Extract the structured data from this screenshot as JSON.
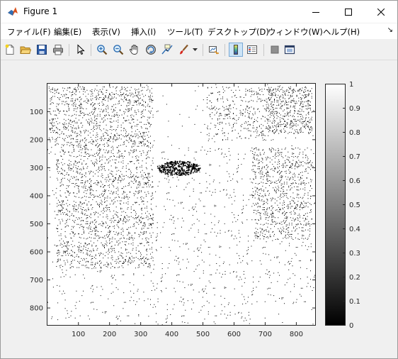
{
  "window": {
    "title": "Figure 1"
  },
  "menu": [
    {
      "id": "file",
      "label": "ファイル(F)"
    },
    {
      "id": "edit",
      "label": "編集(E)"
    },
    {
      "id": "view",
      "label": "表示(V)"
    },
    {
      "id": "insert",
      "label": "挿入(I)"
    },
    {
      "id": "tools",
      "label": "ツール(T)"
    },
    {
      "id": "desktop",
      "label": "デスクトップ(D)"
    },
    {
      "id": "window",
      "label": "ウィンドウ(W)"
    },
    {
      "id": "help",
      "label": "ヘルプ(H)"
    }
  ],
  "toolbar": [
    "new-figure-icon",
    "open-file-icon",
    "save-icon",
    "print-icon",
    "pointer-icon",
    "zoom-in-icon",
    "zoom-out-icon",
    "pan-icon",
    "rotate-3d-icon",
    "data-cursor-icon",
    "brush-icon",
    "link-plot-icon",
    "colorbar-icon",
    "legend-icon",
    "hide-plot-tools-icon",
    "show-plot-tools-icon"
  ],
  "chart_data": {
    "type": "heatmap",
    "colormap": "gray",
    "x_range": [
      1,
      860
    ],
    "y_range": [
      1,
      860
    ],
    "y_reversed": true,
    "x_ticks": [
      "100",
      "200",
      "300",
      "400",
      "500",
      "600",
      "700",
      "800"
    ],
    "y_ticks": [
      "100",
      "200",
      "300",
      "400",
      "500",
      "600",
      "700",
      "800"
    ],
    "colorbar": {
      "range": [
        0,
        1
      ],
      "ticks": [
        "0",
        "0.1",
        "0.2",
        "0.3",
        "0.4",
        "0.5",
        "0.6",
        "0.7",
        "0.8",
        "0.9",
        "1"
      ]
    },
    "title": "",
    "xlabel": "",
    "ylabel": ""
  }
}
